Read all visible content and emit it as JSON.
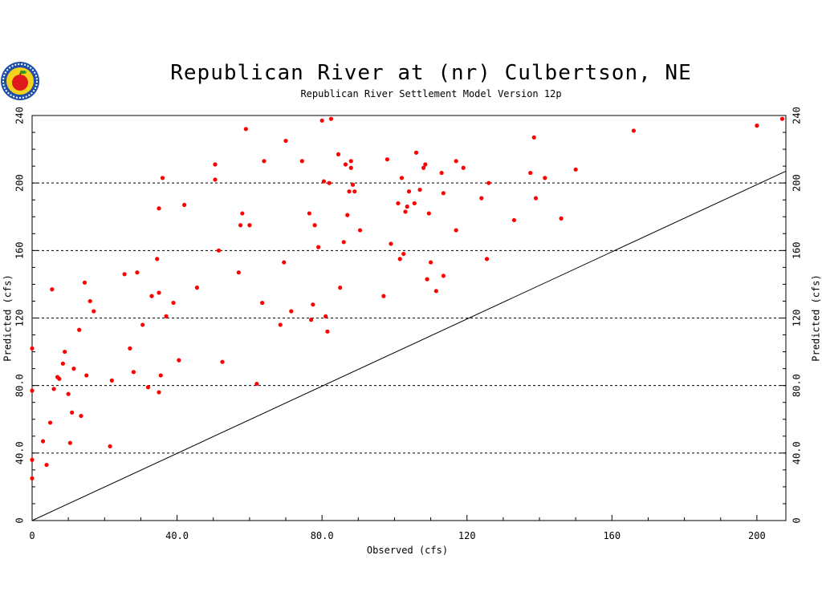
{
  "chart_data": {
    "type": "scatter",
    "title": "Republican River at (nr) Culbertson, NE",
    "subtitle": "Republican River Settlement Model Version 12p",
    "xlabel": "Observed (cfs)",
    "ylabel": "Predicted (cfs)",
    "xlim": [
      0,
      208
    ],
    "ylim": [
      0,
      240
    ],
    "x_ticks": [
      0,
      40,
      80,
      120,
      160,
      200
    ],
    "x_tick_labels": [
      "0",
      "40.0",
      "80.0",
      "120",
      "160",
      "200"
    ],
    "y_ticks": [
      0,
      40,
      80,
      120,
      160,
      200,
      240
    ],
    "y_tick_labels": [
      "0",
      "40.0",
      "80.0",
      "120",
      "160",
      "200",
      "240"
    ],
    "grid": "horizontal dashed",
    "reference_line": "1:1",
    "point_color": "#ff0000",
    "points": [
      [
        0,
        102
      ],
      [
        0,
        77
      ],
      [
        0,
        36
      ],
      [
        0,
        25
      ],
      [
        3,
        47
      ],
      [
        4,
        33
      ],
      [
        5,
        58
      ],
      [
        6,
        78
      ],
      [
        5.5,
        137
      ],
      [
        7,
        85
      ],
      [
        7.5,
        84
      ],
      [
        8.5,
        93
      ],
      [
        9,
        100
      ],
      [
        10,
        75
      ],
      [
        10.5,
        46
      ],
      [
        11,
        64
      ],
      [
        11.5,
        90
      ],
      [
        13,
        113
      ],
      [
        13.5,
        62
      ],
      [
        14.5,
        141
      ],
      [
        15,
        86
      ],
      [
        16,
        130
      ],
      [
        17,
        124
      ],
      [
        21.5,
        44
      ],
      [
        22,
        83
      ],
      [
        25.5,
        146
      ],
      [
        27,
        102
      ],
      [
        28,
        88
      ],
      [
        29,
        147
      ],
      [
        30.5,
        116
      ],
      [
        32,
        79
      ],
      [
        33,
        133
      ],
      [
        34.5,
        155
      ],
      [
        35,
        185
      ],
      [
        35,
        135
      ],
      [
        35,
        76
      ],
      [
        35.5,
        86
      ],
      [
        36,
        203
      ],
      [
        37,
        121
      ],
      [
        39,
        129
      ],
      [
        40.5,
        95
      ],
      [
        42,
        187
      ],
      [
        45.5,
        138
      ],
      [
        50.5,
        211
      ],
      [
        50.5,
        202
      ],
      [
        51.5,
        160
      ],
      [
        52.5,
        94
      ],
      [
        57,
        147
      ],
      [
        57.5,
        175
      ],
      [
        58,
        182
      ],
      [
        59,
        232
      ],
      [
        60,
        175
      ],
      [
        62,
        81
      ],
      [
        63.5,
        129
      ],
      [
        64,
        213
      ],
      [
        68.5,
        116
      ],
      [
        69.5,
        153
      ],
      [
        70,
        225
      ],
      [
        71.5,
        124
      ],
      [
        74.5,
        213
      ],
      [
        76.5,
        182
      ],
      [
        77,
        119
      ],
      [
        77.5,
        128
      ],
      [
        78,
        175
      ],
      [
        79,
        162
      ],
      [
        80,
        237
      ],
      [
        80.5,
        201
      ],
      [
        81,
        121
      ],
      [
        81.5,
        112
      ],
      [
        82,
        200
      ],
      [
        82.5,
        238
      ],
      [
        84.5,
        217
      ],
      [
        85,
        138
      ],
      [
        86,
        165
      ],
      [
        86.5,
        211
      ],
      [
        87,
        181
      ],
      [
        87.5,
        195
      ],
      [
        88,
        209
      ],
      [
        88,
        213
      ],
      [
        88.5,
        199
      ],
      [
        89,
        195
      ],
      [
        90.5,
        172
      ],
      [
        97,
        133
      ],
      [
        98,
        214
      ],
      [
        99,
        164
      ],
      [
        101,
        188
      ],
      [
        101.5,
        155
      ],
      [
        102,
        203
      ],
      [
        102.5,
        158
      ],
      [
        103,
        183
      ],
      [
        103.5,
        186
      ],
      [
        104,
        195
      ],
      [
        105.5,
        188
      ],
      [
        106,
        218
      ],
      [
        107,
        196
      ],
      [
        108,
        209
      ],
      [
        108.5,
        211
      ],
      [
        109,
        143
      ],
      [
        109.5,
        182
      ],
      [
        110,
        153
      ],
      [
        111.5,
        136
      ],
      [
        113,
        206
      ],
      [
        113.5,
        194
      ],
      [
        113.5,
        145
      ],
      [
        117,
        213
      ],
      [
        117,
        172
      ],
      [
        119,
        209
      ],
      [
        124,
        191
      ],
      [
        125.5,
        155
      ],
      [
        126,
        200
      ],
      [
        133,
        178
      ],
      [
        137.5,
        206
      ],
      [
        138.5,
        227
      ],
      [
        139,
        191
      ],
      [
        141.5,
        203
      ],
      [
        146,
        179
      ],
      [
        150,
        208
      ],
      [
        166,
        231
      ],
      [
        200,
        234
      ],
      [
        207,
        238
      ]
    ]
  }
}
